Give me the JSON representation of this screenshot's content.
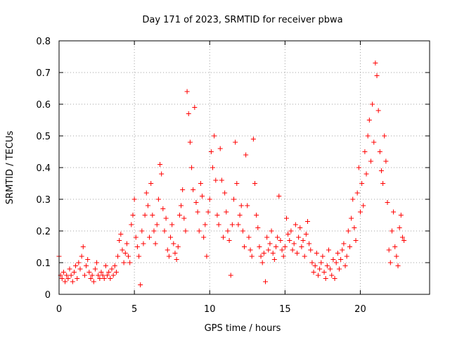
{
  "chart_data": {
    "type": "scatter",
    "title": "Day 171 of 2023, SRMTID for receiver pbwa",
    "xlabel": "GPS time / hours",
    "ylabel": "SRMTID / TECUs",
    "xlim": [
      0,
      24.6
    ],
    "ylim": [
      0,
      0.8
    ],
    "xticks": [
      0,
      5,
      10,
      15,
      20
    ],
    "yticks": [
      0,
      0.1,
      0.2,
      0.3,
      0.4,
      0.5,
      0.6,
      0.7,
      0.8
    ],
    "xtick_labels": [
      "0",
      "5",
      "10",
      "15",
      "20"
    ],
    "ytick_labels": [
      "0",
      "0.1",
      "0.2",
      "0.3",
      "0.4",
      "0.5",
      "0.6",
      "0.7",
      "0.8"
    ],
    "grid": true,
    "marker": "+",
    "color": "#ff0000",
    "series": [
      {
        "name": "SRMTID",
        "x": [
          0.0,
          0.1,
          0.2,
          0.3,
          0.4,
          0.5,
          0.6,
          0.7,
          0.8,
          0.9,
          1.0,
          1.1,
          1.2,
          1.3,
          1.4,
          1.5,
          1.6,
          1.7,
          1.8,
          1.9,
          2.0,
          2.1,
          2.2,
          2.3,
          2.4,
          2.5,
          2.6,
          2.7,
          2.8,
          2.9,
          3.0,
          3.1,
          3.2,
          3.3,
          3.4,
          3.5,
          3.6,
          3.7,
          3.8,
          3.9,
          4.0,
          4.1,
          4.2,
          4.3,
          4.4,
          4.5,
          4.6,
          4.7,
          4.8,
          4.9,
          5.0,
          5.1,
          5.2,
          5.3,
          5.4,
          5.5,
          5.6,
          5.7,
          5.8,
          5.9,
          6.0,
          6.1,
          6.2,
          6.3,
          6.4,
          6.5,
          6.6,
          6.7,
          6.8,
          6.9,
          7.0,
          7.1,
          7.2,
          7.3,
          7.4,
          7.5,
          7.6,
          7.7,
          7.8,
          7.9,
          8.0,
          8.1,
          8.2,
          8.3,
          8.4,
          8.5,
          8.6,
          8.7,
          8.8,
          8.9,
          9.0,
          9.1,
          9.2,
          9.3,
          9.4,
          9.5,
          9.6,
          9.7,
          9.8,
          9.9,
          10.0,
          10.1,
          10.2,
          10.3,
          10.4,
          10.5,
          10.6,
          10.7,
          10.8,
          10.9,
          11.0,
          11.1,
          11.2,
          11.3,
          11.4,
          11.5,
          11.6,
          11.7,
          11.8,
          11.9,
          12.0,
          12.1,
          12.2,
          12.3,
          12.4,
          12.5,
          12.6,
          12.7,
          12.8,
          12.9,
          13.0,
          13.1,
          13.2,
          13.3,
          13.4,
          13.5,
          13.6,
          13.7,
          13.8,
          13.9,
          14.0,
          14.1,
          14.2,
          14.3,
          14.4,
          14.5,
          14.6,
          14.7,
          14.8,
          14.9,
          15.0,
          15.1,
          15.2,
          15.3,
          15.4,
          15.5,
          15.6,
          15.7,
          15.8,
          15.9,
          16.0,
          16.1,
          16.2,
          16.3,
          16.4,
          16.5,
          16.6,
          16.7,
          16.8,
          16.9,
          17.0,
          17.1,
          17.2,
          17.3,
          17.4,
          17.5,
          17.6,
          17.7,
          17.8,
          17.9,
          18.0,
          18.1,
          18.2,
          18.3,
          18.4,
          18.5,
          18.6,
          18.7,
          18.8,
          18.9,
          19.0,
          19.1,
          19.2,
          19.3,
          19.4,
          19.5,
          19.6,
          19.7,
          19.8,
          19.9,
          20.0,
          20.1,
          20.2,
          20.3,
          20.4,
          20.5,
          20.6,
          20.7,
          20.8,
          20.9,
          21.0,
          21.1,
          21.2,
          21.3,
          21.4,
          21.5,
          21.6,
          21.7,
          21.8,
          21.9,
          22.0,
          22.1,
          22.2,
          22.3,
          22.4,
          22.5,
          22.6,
          22.7,
          22.8,
          22.9
        ],
        "y": [
          0.12,
          0.06,
          0.05,
          0.07,
          0.04,
          0.06,
          0.05,
          0.08,
          0.06,
          0.04,
          0.07,
          0.09,
          0.05,
          0.1,
          0.08,
          0.12,
          0.15,
          0.06,
          0.09,
          0.11,
          0.07,
          0.05,
          0.06,
          0.04,
          0.08,
          0.1,
          0.06,
          0.05,
          0.07,
          0.06,
          0.05,
          0.09,
          0.06,
          0.07,
          0.05,
          0.08,
          0.06,
          0.09,
          0.07,
          0.12,
          0.17,
          0.19,
          0.14,
          0.1,
          0.13,
          0.16,
          0.12,
          0.1,
          0.22,
          0.25,
          0.3,
          0.18,
          0.15,
          0.12,
          0.03,
          0.2,
          0.16,
          0.25,
          0.32,
          0.28,
          0.18,
          0.35,
          0.25,
          0.2,
          0.16,
          0.22,
          0.3,
          0.41,
          0.38,
          0.27,
          0.2,
          0.24,
          0.14,
          0.12,
          0.18,
          0.22,
          0.16,
          0.13,
          0.11,
          0.15,
          0.25,
          0.28,
          0.33,
          0.24,
          0.2,
          0.64,
          0.57,
          0.48,
          0.4,
          0.33,
          0.59,
          0.29,
          0.26,
          0.2,
          0.35,
          0.31,
          0.18,
          0.22,
          0.12,
          0.26,
          0.3,
          0.45,
          0.4,
          0.5,
          0.36,
          0.25,
          0.22,
          0.46,
          0.36,
          0.18,
          0.32,
          0.26,
          0.2,
          0.17,
          0.06,
          0.22,
          0.3,
          0.48,
          0.35,
          0.22,
          0.25,
          0.28,
          0.2,
          0.15,
          0.44,
          0.28,
          0.18,
          0.14,
          0.12,
          0.49,
          0.35,
          0.25,
          0.21,
          0.15,
          0.12,
          0.1,
          0.13,
          0.04,
          0.18,
          0.14,
          0.16,
          0.2,
          0.13,
          0.11,
          0.15,
          0.18,
          0.31,
          0.17,
          0.14,
          0.12,
          0.15,
          0.24,
          0.19,
          0.17,
          0.2,
          0.14,
          0.16,
          0.22,
          0.13,
          0.18,
          0.21,
          0.15,
          0.17,
          0.12,
          0.19,
          0.23,
          0.16,
          0.14,
          0.1,
          0.07,
          0.09,
          0.13,
          0.06,
          0.08,
          0.1,
          0.12,
          0.07,
          0.05,
          0.09,
          0.14,
          0.08,
          0.06,
          0.11,
          0.05,
          0.1,
          0.13,
          0.08,
          0.11,
          0.14,
          0.16,
          0.09,
          0.12,
          0.2,
          0.15,
          0.24,
          0.3,
          0.21,
          0.17,
          0.32,
          0.4,
          0.26,
          0.35,
          0.28,
          0.45,
          0.38,
          0.5,
          0.55,
          0.42,
          0.6,
          0.48,
          0.73,
          0.69,
          0.58,
          0.45,
          0.39,
          0.35,
          0.5,
          0.42,
          0.29,
          0.14,
          0.1,
          0.2,
          0.26,
          0.15,
          0.12,
          0.09,
          0.21,
          0.25,
          0.18,
          0.17
        ]
      }
    ]
  }
}
